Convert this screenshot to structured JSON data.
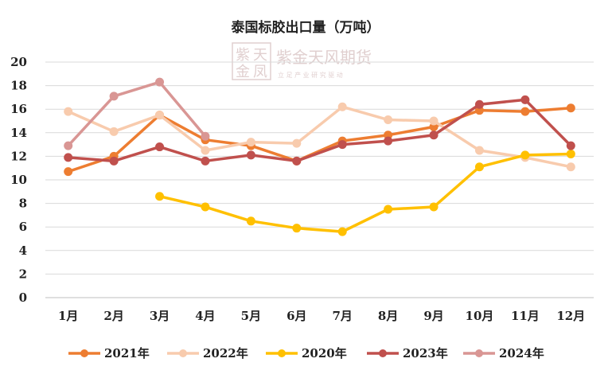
{
  "chart_data": {
    "type": "line",
    "title": "泰国标胶出口量（万吨）",
    "xlabel": "",
    "ylabel": "",
    "ylim": [
      0,
      20
    ],
    "yticks": [
      0,
      2,
      4,
      6,
      8,
      10,
      12,
      14,
      16,
      18,
      20
    ],
    "grid": true,
    "legend_position": "bottom",
    "categories": [
      "1月",
      "2月",
      "3月",
      "4月",
      "5月",
      "6月",
      "7月",
      "8月",
      "9月",
      "10月",
      "11月",
      "12月"
    ],
    "series": [
      {
        "name": "2021年",
        "color": "#ED7D31",
        "values": [
          10.7,
          12.0,
          15.5,
          13.4,
          12.9,
          11.6,
          13.3,
          13.8,
          14.5,
          15.9,
          15.8,
          16.1
        ]
      },
      {
        "name": "2022年",
        "color": "#F8CBAD",
        "values": [
          15.8,
          14.1,
          15.5,
          12.5,
          13.2,
          13.1,
          16.2,
          15.1,
          15.0,
          12.5,
          11.9,
          11.1
        ]
      },
      {
        "name": "2020年",
        "color": "#FFC000",
        "values": [
          null,
          null,
          8.6,
          7.7,
          6.5,
          5.9,
          5.6,
          7.5,
          7.7,
          11.1,
          12.1,
          12.2
        ]
      },
      {
        "name": "2023年",
        "color": "#C0504D",
        "values": [
          11.9,
          11.6,
          12.8,
          11.6,
          12.1,
          11.6,
          13.0,
          13.3,
          13.8,
          16.4,
          16.8,
          12.9
        ]
      },
      {
        "name": "2024年",
        "color": "#D99694",
        "values": [
          12.9,
          17.1,
          18.3,
          13.7,
          null,
          null,
          null,
          null,
          null,
          null,
          null,
          null
        ]
      }
    ]
  },
  "watermark": {
    "logo_chars": [
      "紫",
      "天",
      "金",
      "凤"
    ],
    "name": "紫金天风期货",
    "slogan": "立 足 产 业   研 究 驱 动",
    "color": "#C8A8A8"
  }
}
